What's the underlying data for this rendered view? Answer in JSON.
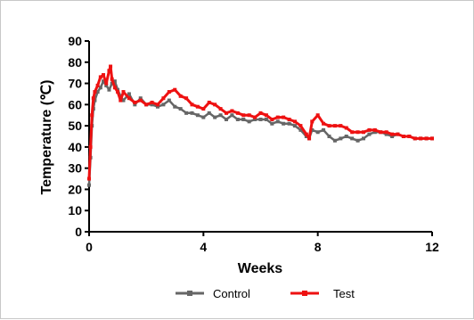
{
  "chart_data": {
    "type": "line",
    "xlabel": "Weeks",
    "ylabel": "Temperature (℃)",
    "xlim": [
      0,
      12
    ],
    "ylim": [
      0,
      90
    ],
    "xticks": [
      0,
      4,
      8,
      12
    ],
    "yticks": [
      0,
      10,
      20,
      30,
      40,
      50,
      60,
      70,
      80,
      90
    ],
    "grid": false,
    "legend_position": "bottom",
    "series": [
      {
        "name": "Control",
        "color": "#666666",
        "x": [
          0.0,
          0.05,
          0.1,
          0.15,
          0.2,
          0.3,
          0.4,
          0.5,
          0.6,
          0.7,
          0.8,
          0.9,
          1.0,
          1.1,
          1.2,
          1.4,
          1.6,
          1.8,
          2.0,
          2.2,
          2.4,
          2.6,
          2.8,
          3.0,
          3.2,
          3.4,
          3.6,
          3.8,
          4.0,
          4.2,
          4.4,
          4.6,
          4.8,
          5.0,
          5.2,
          5.4,
          5.6,
          5.8,
          6.0,
          6.2,
          6.4,
          6.6,
          6.8,
          7.0,
          7.2,
          7.4,
          7.6,
          7.7,
          7.8,
          8.0,
          8.2,
          8.4,
          8.6,
          8.8,
          9.0,
          9.2,
          9.4,
          9.6,
          9.8,
          10.0,
          10.2,
          10.4,
          10.6,
          10.8,
          11.0,
          11.2,
          11.4,
          11.6,
          11.8,
          12.0
        ],
        "y": [
          22,
          35,
          50,
          58,
          62,
          66,
          68,
          71,
          69,
          67,
          70,
          71,
          67,
          64,
          62,
          65,
          60,
          63,
          60,
          60,
          59,
          60,
          62,
          59,
          58,
          56,
          56,
          55,
          54,
          56,
          54,
          55,
          53,
          55,
          53,
          53,
          52,
          53,
          53,
          53,
          51,
          52,
          51,
          51,
          50,
          48,
          45,
          44,
          48,
          47,
          48,
          45,
          43,
          44,
          45,
          44,
          43,
          44,
          46,
          47,
          47,
          46,
          45,
          46,
          45,
          45,
          44,
          44,
          44,
          44
        ]
      },
      {
        "name": "Test",
        "color": "#ee1111",
        "x": [
          0.0,
          0.05,
          0.1,
          0.15,
          0.2,
          0.3,
          0.4,
          0.5,
          0.6,
          0.7,
          0.75,
          0.8,
          0.9,
          1.0,
          1.1,
          1.2,
          1.4,
          1.6,
          1.8,
          2.0,
          2.2,
          2.4,
          2.6,
          2.8,
          3.0,
          3.2,
          3.4,
          3.6,
          3.8,
          4.0,
          4.2,
          4.4,
          4.6,
          4.8,
          5.0,
          5.2,
          5.4,
          5.6,
          5.8,
          6.0,
          6.2,
          6.4,
          6.6,
          6.8,
          7.0,
          7.2,
          7.4,
          7.6,
          7.7,
          7.8,
          8.0,
          8.2,
          8.4,
          8.6,
          8.8,
          9.0,
          9.2,
          9.4,
          9.6,
          9.8,
          10.0,
          10.2,
          10.4,
          10.6,
          10.8,
          11.0,
          11.2,
          11.4,
          11.6,
          11.8,
          12.0
        ],
        "y": [
          25,
          40,
          55,
          63,
          66,
          69,
          73,
          74,
          70,
          76,
          78,
          72,
          68,
          66,
          62,
          66,
          63,
          61,
          62,
          60,
          61,
          60,
          63,
          66,
          67,
          64,
          63,
          60,
          59,
          58,
          61,
          60,
          58,
          56,
          57,
          56,
          55,
          55,
          54,
          56,
          55,
          53,
          54,
          54,
          53,
          52,
          50,
          46,
          44,
          52,
          55,
          51,
          50,
          50,
          50,
          49,
          47,
          47,
          47,
          48,
          48,
          47,
          47,
          46,
          46,
          45,
          45,
          44,
          44,
          44,
          44
        ]
      }
    ]
  }
}
